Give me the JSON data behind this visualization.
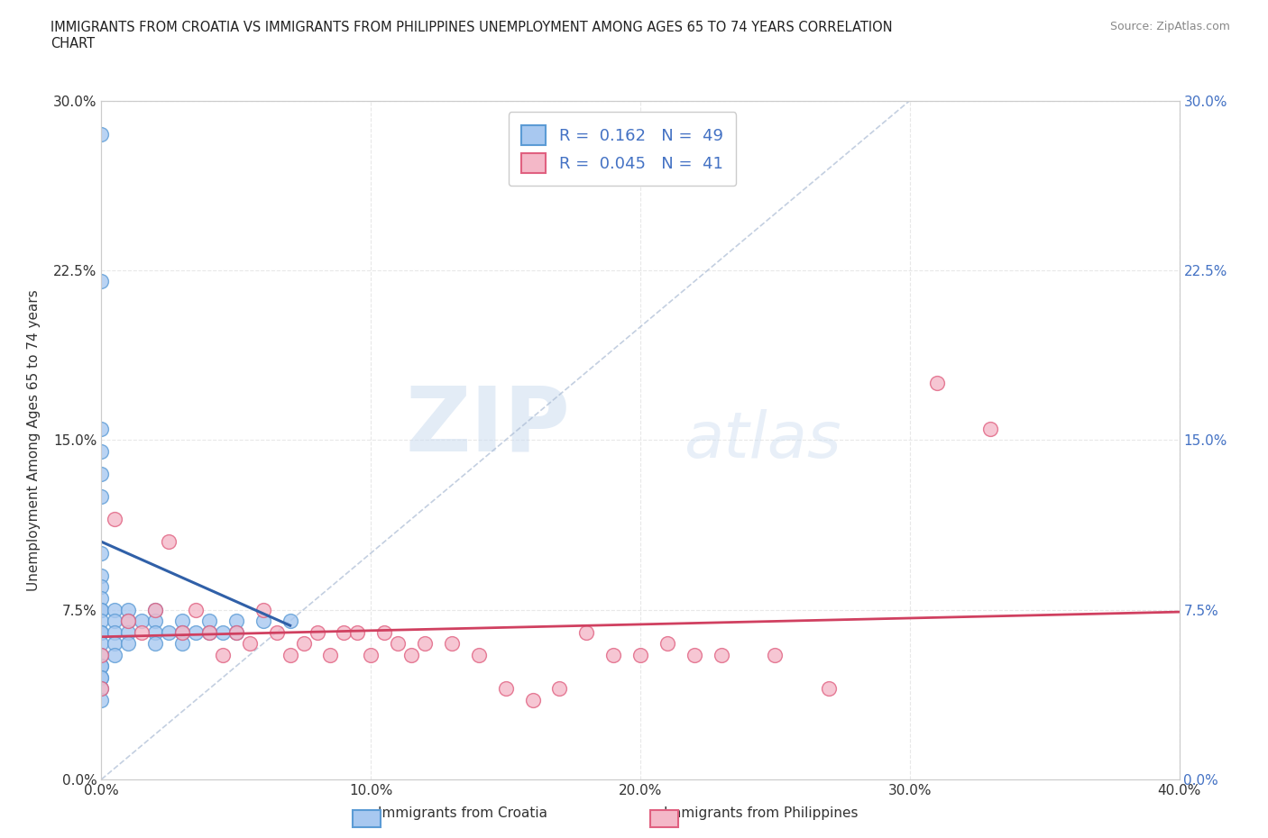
{
  "title": "IMMIGRANTS FROM CROATIA VS IMMIGRANTS FROM PHILIPPINES UNEMPLOYMENT AMONG AGES 65 TO 74 YEARS CORRELATION\nCHART",
  "source": "Source: ZipAtlas.com",
  "ylabel": "Unemployment Among Ages 65 to 74 years",
  "xlim": [
    0.0,
    0.4
  ],
  "ylim": [
    0.0,
    0.3
  ],
  "xticks": [
    0.0,
    0.1,
    0.2,
    0.3,
    0.4
  ],
  "xticklabels": [
    "0.0%",
    "10.0%",
    "20.0%",
    "30.0%",
    "40.0%"
  ],
  "yticks": [
    0.0,
    0.075,
    0.15,
    0.225,
    0.3
  ],
  "yticklabels": [
    "0.0%",
    "7.5%",
    "15.0%",
    "22.5%",
    "30.0%"
  ],
  "croatia_color": "#a8c8f0",
  "croatia_edge": "#5b9bd5",
  "philippines_color": "#f4b8c8",
  "philippines_edge": "#e06080",
  "croatia_R": 0.162,
  "croatia_N": 49,
  "philippines_R": 0.045,
  "philippines_N": 41,
  "croatia_scatter_x": [
    0.0,
    0.0,
    0.0,
    0.0,
    0.0,
    0.0,
    0.0,
    0.0,
    0.0,
    0.0,
    0.0,
    0.0,
    0.0,
    0.0,
    0.0,
    0.0,
    0.0,
    0.0,
    0.0,
    0.0,
    0.0,
    0.0,
    0.0,
    0.005,
    0.005,
    0.005,
    0.005,
    0.005,
    0.01,
    0.01,
    0.01,
    0.01,
    0.015,
    0.02,
    0.02,
    0.02,
    0.02,
    0.025,
    0.03,
    0.03,
    0.03,
    0.035,
    0.04,
    0.04,
    0.045,
    0.05,
    0.05,
    0.06,
    0.07
  ],
  "croatia_scatter_y": [
    0.285,
    0.22,
    0.155,
    0.145,
    0.135,
    0.125,
    0.1,
    0.09,
    0.085,
    0.08,
    0.075,
    0.075,
    0.07,
    0.065,
    0.065,
    0.06,
    0.055,
    0.05,
    0.05,
    0.045,
    0.045,
    0.04,
    0.035,
    0.075,
    0.07,
    0.065,
    0.06,
    0.055,
    0.075,
    0.07,
    0.065,
    0.06,
    0.07,
    0.075,
    0.07,
    0.065,
    0.06,
    0.065,
    0.07,
    0.065,
    0.06,
    0.065,
    0.07,
    0.065,
    0.065,
    0.07,
    0.065,
    0.07,
    0.07
  ],
  "philippines_scatter_x": [
    0.0,
    0.0,
    0.005,
    0.01,
    0.015,
    0.02,
    0.025,
    0.03,
    0.035,
    0.04,
    0.045,
    0.05,
    0.055,
    0.06,
    0.065,
    0.07,
    0.075,
    0.08,
    0.085,
    0.09,
    0.095,
    0.1,
    0.105,
    0.11,
    0.115,
    0.12,
    0.13,
    0.14,
    0.15,
    0.16,
    0.17,
    0.18,
    0.19,
    0.2,
    0.21,
    0.22,
    0.23,
    0.25,
    0.27,
    0.31,
    0.33
  ],
  "philippines_scatter_y": [
    0.055,
    0.04,
    0.115,
    0.07,
    0.065,
    0.075,
    0.105,
    0.065,
    0.075,
    0.065,
    0.055,
    0.065,
    0.06,
    0.075,
    0.065,
    0.055,
    0.06,
    0.065,
    0.055,
    0.065,
    0.065,
    0.055,
    0.065,
    0.06,
    0.055,
    0.06,
    0.06,
    0.055,
    0.04,
    0.035,
    0.04,
    0.065,
    0.055,
    0.055,
    0.06,
    0.055,
    0.055,
    0.055,
    0.04,
    0.175,
    0.155
  ],
  "croatia_line_x": [
    0.0,
    0.07
  ],
  "croatia_line_y": [
    0.105,
    0.068
  ],
  "philippines_line_x": [
    0.0,
    0.4
  ],
  "philippines_line_y": [
    0.063,
    0.074
  ],
  "diag_line_x": [
    0.0,
    0.3
  ],
  "diag_line_y": [
    0.0,
    0.3
  ],
  "watermark_zip": "ZIP",
  "watermark_atlas": "atlas",
  "background_color": "#ffffff",
  "grid_color": "#e8e8e8",
  "right_ytick_color": "#4472c4",
  "legend_label_croatia": "Immigrants from Croatia",
  "legend_label_philippines": "Immigrants from Philippines"
}
